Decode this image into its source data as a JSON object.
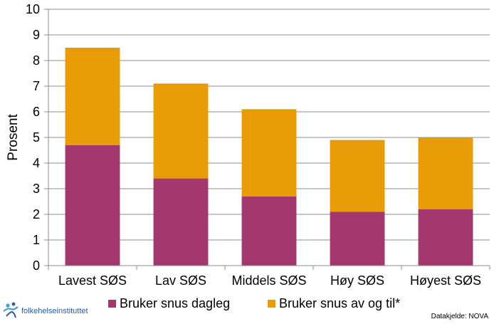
{
  "chart_data": {
    "type": "bar",
    "stacked": true,
    "categories": [
      "Lavest SØS",
      "Lav SØS",
      "Middels SØS",
      "Høy SØS",
      "Høyest SØS"
    ],
    "series": [
      {
        "name": "Bruker snus dagleg",
        "values": [
          4.7,
          3.4,
          2.7,
          2.1,
          2.2
        ],
        "color": "#a3386f"
      },
      {
        "name": "Bruker snus av og til*",
        "values": [
          3.8,
          3.7,
          3.4,
          2.8,
          2.8
        ],
        "color": "#e79b04"
      }
    ],
    "title": "",
    "xlabel": "",
    "ylabel": "Prosent",
    "ylim": [
      0,
      10
    ],
    "yticks": [
      0,
      1,
      2,
      3,
      4,
      5,
      6,
      7,
      8,
      9,
      10
    ],
    "grid": true,
    "legend": "bottom"
  },
  "footer": {
    "logo_text": "folkehelseinstituttet",
    "source": "Datakjelde: NOVA"
  }
}
